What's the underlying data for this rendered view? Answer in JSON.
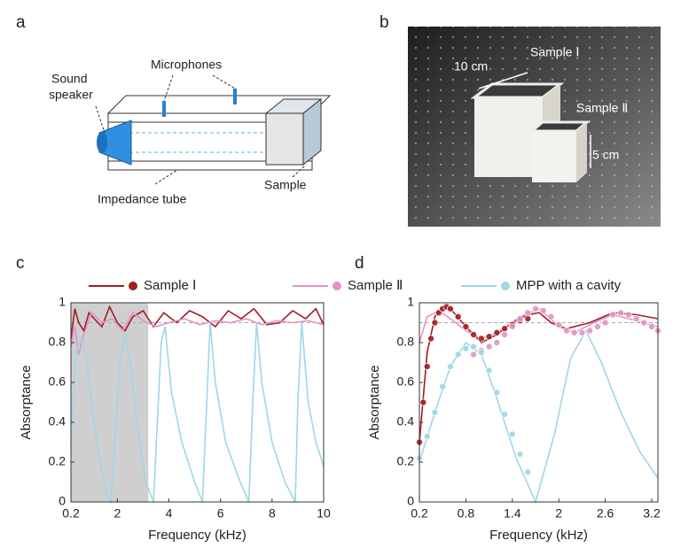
{
  "panel_labels": [
    "a",
    "b",
    "c",
    "d"
  ],
  "diagram": {
    "speaker": [
      "Sound",
      "speaker"
    ],
    "microphones": "Microphones",
    "tube": "Impedance tube",
    "sample": "Sample"
  },
  "photo": {
    "sample1": "Sample Ⅰ",
    "sample2": "Sample Ⅱ",
    "size1": "10 cm",
    "size2": "5 cm"
  },
  "chart_data": [
    {
      "type": "line",
      "xlabel": "Frequency (kHz)",
      "ylabel": "Absorptance",
      "xlim": [
        0.2,
        10
      ],
      "xticks": [
        0.2,
        2,
        4,
        6,
        8,
        10
      ],
      "ylim": [
        0,
        1
      ],
      "yticks": [
        0,
        0.2,
        0.4,
        0.6,
        0.8,
        1
      ],
      "shaded_range": [
        0.2,
        3.2
      ],
      "reference_y": 0.9,
      "legend": "top",
      "series": [
        {
          "name": "Sample Ⅰ",
          "color": "#a31d22",
          "x": [
            0.2,
            0.35,
            0.5,
            0.7,
            0.9,
            1.1,
            1.4,
            1.7,
            2.0,
            2.3,
            2.6,
            3.0,
            3.4,
            3.8,
            4.3,
            4.8,
            5.3,
            5.8,
            6.3,
            6.8,
            7.3,
            7.8,
            8.3,
            8.8,
            9.3,
            9.7,
            10
          ],
          "values": [
            0.82,
            0.97,
            0.9,
            0.86,
            0.95,
            0.92,
            0.88,
            0.98,
            0.9,
            0.86,
            0.93,
            0.96,
            0.88,
            0.95,
            0.9,
            0.96,
            0.93,
            0.88,
            0.96,
            0.92,
            0.97,
            0.89,
            0.9,
            0.96,
            0.92,
            0.97,
            0.89
          ]
        },
        {
          "name": "Sample Ⅱ",
          "color": "#e294c4",
          "x": [
            0.2,
            0.35,
            0.5,
            0.7,
            1.0,
            1.4,
            1.8,
            2.2,
            2.6,
            3.0,
            3.5,
            4.0,
            4.6,
            5.2,
            5.8,
            6.4,
            7.0,
            7.6,
            8.2,
            8.8,
            9.4,
            10
          ],
          "values": [
            0.78,
            0.88,
            0.74,
            0.84,
            0.95,
            0.9,
            0.92,
            0.86,
            0.95,
            0.91,
            0.88,
            0.9,
            0.92,
            0.89,
            0.91,
            0.9,
            0.92,
            0.89,
            0.91,
            0.9,
            0.91,
            0.89
          ]
        },
        {
          "name": "MPP with a cavity",
          "color": "#9fd6e8",
          "x": [
            0.2,
            0.4,
            0.6,
            0.8,
            1.0,
            1.2,
            1.4,
            1.6,
            1.75,
            1.9,
            2.1,
            2.3,
            2.5,
            2.8,
            3.1,
            3.4,
            3.55,
            3.7,
            3.85,
            4.1,
            4.5,
            5.0,
            5.3,
            5.45,
            5.6,
            5.8,
            6.2,
            6.7,
            7.1,
            7.25,
            7.4,
            7.6,
            8.0,
            8.5,
            8.9,
            9.0,
            9.15,
            9.4,
            9.7,
            10
          ],
          "values": [
            0.3,
            0.75,
            0.82,
            0.72,
            0.5,
            0.3,
            0.15,
            0.03,
            0,
            0.3,
            0.7,
            0.85,
            0.7,
            0.35,
            0.1,
            0,
            0.4,
            0.8,
            0.88,
            0.55,
            0.3,
            0.1,
            0,
            0.45,
            0.9,
            0.6,
            0.3,
            0.12,
            0,
            0.5,
            0.9,
            0.6,
            0.3,
            0.1,
            0,
            0.5,
            0.9,
            0.5,
            0.3,
            0.18
          ]
        }
      ]
    },
    {
      "type": "line",
      "xlabel": "Frequency (kHz)",
      "ylabel": "Absorptance",
      "xlim": [
        0.2,
        3.28
      ],
      "xticks": [
        0.2,
        0.8,
        1.4,
        2,
        2.6,
        3.2
      ],
      "ylim": [
        0,
        1
      ],
      "yticks": [
        0,
        0.2,
        0.4,
        0.6,
        0.8,
        1
      ],
      "reference_y": 0.9,
      "series": [
        {
          "color": "#a31d22",
          "style": "line",
          "x": [
            0.2,
            0.3,
            0.4,
            0.5,
            0.6,
            0.8,
            1.0,
            1.2,
            1.4,
            1.6,
            1.75,
            1.9,
            2.1,
            2.4,
            2.7,
            3.0,
            3.28
          ],
          "values": [
            0.3,
            0.75,
            0.93,
            0.98,
            0.97,
            0.88,
            0.8,
            0.84,
            0.9,
            0.94,
            0.95,
            0.9,
            0.87,
            0.9,
            0.95,
            0.94,
            0.92
          ]
        },
        {
          "color": "#e294c4",
          "style": "line",
          "x": [
            0.2,
            0.3,
            0.45,
            0.6,
            0.8,
            1.0,
            1.2,
            1.5,
            1.75,
            2.0,
            2.2,
            2.45,
            2.7,
            3.0,
            3.28
          ],
          "values": [
            0.8,
            0.93,
            0.96,
            0.92,
            0.86,
            0.82,
            0.85,
            0.93,
            0.97,
            0.88,
            0.85,
            0.9,
            0.94,
            0.91,
            0.88
          ]
        },
        {
          "color": "#9fd6e8",
          "style": "line",
          "x": [
            0.2,
            0.4,
            0.6,
            0.8,
            1.0,
            1.2,
            1.45,
            1.7,
            1.95,
            2.15,
            2.35,
            2.55,
            2.8,
            3.05,
            3.28
          ],
          "values": [
            0.2,
            0.45,
            0.68,
            0.8,
            0.74,
            0.52,
            0.22,
            0,
            0.35,
            0.72,
            0.86,
            0.7,
            0.45,
            0.25,
            0.12
          ]
        },
        {
          "color": "#a31d22",
          "style": "markers",
          "x": [
            0.2,
            0.25,
            0.3,
            0.35,
            0.4,
            0.45,
            0.5,
            0.55,
            0.6,
            0.7,
            0.8,
            0.9,
            1.0,
            1.1,
            1.2,
            1.3,
            1.4,
            1.5,
            1.6
          ],
          "values": [
            0.3,
            0.5,
            0.68,
            0.82,
            0.9,
            0.95,
            0.97,
            0.98,
            0.97,
            0.93,
            0.88,
            0.84,
            0.82,
            0.83,
            0.85,
            0.87,
            0.89,
            0.91,
            0.92
          ]
        },
        {
          "color": "#e294c4",
          "style": "markers",
          "x": [
            0.9,
            1.0,
            1.1,
            1.2,
            1.3,
            1.4,
            1.5,
            1.6,
            1.7,
            1.8,
            1.9,
            2.0,
            2.1,
            2.2,
            2.3,
            2.4,
            2.5,
            2.6,
            2.7,
            2.8,
            2.9,
            3.0,
            3.1,
            3.2,
            3.28
          ],
          "values": [
            0.74,
            0.76,
            0.78,
            0.8,
            0.84,
            0.88,
            0.92,
            0.95,
            0.97,
            0.96,
            0.93,
            0.89,
            0.86,
            0.85,
            0.85,
            0.86,
            0.88,
            0.9,
            0.94,
            0.95,
            0.94,
            0.92,
            0.9,
            0.88,
            0.86
          ]
        },
        {
          "color": "#9fd6e8",
          "style": "markers",
          "x": [
            0.2,
            0.3,
            0.4,
            0.5,
            0.6,
            0.7,
            0.8,
            0.9,
            1.0,
            1.1,
            1.2,
            1.3,
            1.4,
            1.5,
            1.6
          ],
          "values": [
            0.22,
            0.33,
            0.45,
            0.58,
            0.68,
            0.74,
            0.77,
            0.78,
            0.75,
            0.66,
            0.55,
            0.44,
            0.34,
            0.24,
            0.15
          ]
        }
      ]
    }
  ]
}
